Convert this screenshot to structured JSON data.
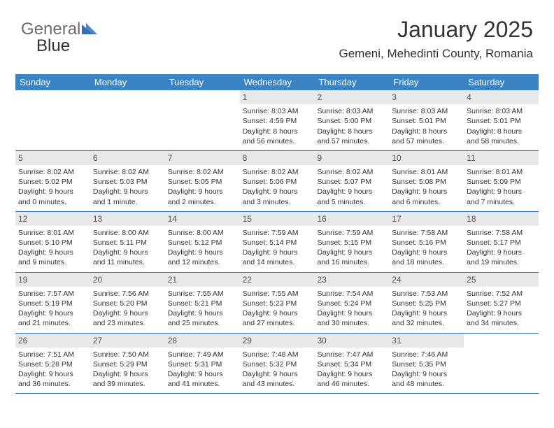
{
  "logo": {
    "text1": "General",
    "text2": "Blue"
  },
  "title": "January 2025",
  "location": "Gemeni, Mehedinti County, Romania",
  "colors": {
    "header_bg": "#3b84c4",
    "header_fg": "#ffffff",
    "daynum_bg": "#e8e8e8",
    "border": "#2f71b8",
    "logo_gray": "#6b6b6b",
    "logo_blue": "#2f71b8"
  },
  "day_headers": [
    "Sunday",
    "Monday",
    "Tuesday",
    "Wednesday",
    "Thursday",
    "Friday",
    "Saturday"
  ],
  "weeks": [
    [
      {
        "n": "",
        "sr": "",
        "ss": "",
        "dl": ""
      },
      {
        "n": "",
        "sr": "",
        "ss": "",
        "dl": ""
      },
      {
        "n": "",
        "sr": "",
        "ss": "",
        "dl": ""
      },
      {
        "n": "1",
        "sr": "Sunrise: 8:03 AM",
        "ss": "Sunset: 4:59 PM",
        "dl": "Daylight: 8 hours and 56 minutes."
      },
      {
        "n": "2",
        "sr": "Sunrise: 8:03 AM",
        "ss": "Sunset: 5:00 PM",
        "dl": "Daylight: 8 hours and 57 minutes."
      },
      {
        "n": "3",
        "sr": "Sunrise: 8:03 AM",
        "ss": "Sunset: 5:01 PM",
        "dl": "Daylight: 8 hours and 57 minutes."
      },
      {
        "n": "4",
        "sr": "Sunrise: 8:03 AM",
        "ss": "Sunset: 5:01 PM",
        "dl": "Daylight: 8 hours and 58 minutes."
      }
    ],
    [
      {
        "n": "5",
        "sr": "Sunrise: 8:02 AM",
        "ss": "Sunset: 5:02 PM",
        "dl": "Daylight: 9 hours and 0 minutes."
      },
      {
        "n": "6",
        "sr": "Sunrise: 8:02 AM",
        "ss": "Sunset: 5:03 PM",
        "dl": "Daylight: 9 hours and 1 minute."
      },
      {
        "n": "7",
        "sr": "Sunrise: 8:02 AM",
        "ss": "Sunset: 5:05 PM",
        "dl": "Daylight: 9 hours and 2 minutes."
      },
      {
        "n": "8",
        "sr": "Sunrise: 8:02 AM",
        "ss": "Sunset: 5:06 PM",
        "dl": "Daylight: 9 hours and 3 minutes."
      },
      {
        "n": "9",
        "sr": "Sunrise: 8:02 AM",
        "ss": "Sunset: 5:07 PM",
        "dl": "Daylight: 9 hours and 5 minutes."
      },
      {
        "n": "10",
        "sr": "Sunrise: 8:01 AM",
        "ss": "Sunset: 5:08 PM",
        "dl": "Daylight: 9 hours and 6 minutes."
      },
      {
        "n": "11",
        "sr": "Sunrise: 8:01 AM",
        "ss": "Sunset: 5:09 PM",
        "dl": "Daylight: 9 hours and 7 minutes."
      }
    ],
    [
      {
        "n": "12",
        "sr": "Sunrise: 8:01 AM",
        "ss": "Sunset: 5:10 PM",
        "dl": "Daylight: 9 hours and 9 minutes."
      },
      {
        "n": "13",
        "sr": "Sunrise: 8:00 AM",
        "ss": "Sunset: 5:11 PM",
        "dl": "Daylight: 9 hours and 11 minutes."
      },
      {
        "n": "14",
        "sr": "Sunrise: 8:00 AM",
        "ss": "Sunset: 5:12 PM",
        "dl": "Daylight: 9 hours and 12 minutes."
      },
      {
        "n": "15",
        "sr": "Sunrise: 7:59 AM",
        "ss": "Sunset: 5:14 PM",
        "dl": "Daylight: 9 hours and 14 minutes."
      },
      {
        "n": "16",
        "sr": "Sunrise: 7:59 AM",
        "ss": "Sunset: 5:15 PM",
        "dl": "Daylight: 9 hours and 16 minutes."
      },
      {
        "n": "17",
        "sr": "Sunrise: 7:58 AM",
        "ss": "Sunset: 5:16 PM",
        "dl": "Daylight: 9 hours and 18 minutes."
      },
      {
        "n": "18",
        "sr": "Sunrise: 7:58 AM",
        "ss": "Sunset: 5:17 PM",
        "dl": "Daylight: 9 hours and 19 minutes."
      }
    ],
    [
      {
        "n": "19",
        "sr": "Sunrise: 7:57 AM",
        "ss": "Sunset: 5:19 PM",
        "dl": "Daylight: 9 hours and 21 minutes."
      },
      {
        "n": "20",
        "sr": "Sunrise: 7:56 AM",
        "ss": "Sunset: 5:20 PM",
        "dl": "Daylight: 9 hours and 23 minutes."
      },
      {
        "n": "21",
        "sr": "Sunrise: 7:55 AM",
        "ss": "Sunset: 5:21 PM",
        "dl": "Daylight: 9 hours and 25 minutes."
      },
      {
        "n": "22",
        "sr": "Sunrise: 7:55 AM",
        "ss": "Sunset: 5:23 PM",
        "dl": "Daylight: 9 hours and 27 minutes."
      },
      {
        "n": "23",
        "sr": "Sunrise: 7:54 AM",
        "ss": "Sunset: 5:24 PM",
        "dl": "Daylight: 9 hours and 30 minutes."
      },
      {
        "n": "24",
        "sr": "Sunrise: 7:53 AM",
        "ss": "Sunset: 5:25 PM",
        "dl": "Daylight: 9 hours and 32 minutes."
      },
      {
        "n": "25",
        "sr": "Sunrise: 7:52 AM",
        "ss": "Sunset: 5:27 PM",
        "dl": "Daylight: 9 hours and 34 minutes."
      }
    ],
    [
      {
        "n": "26",
        "sr": "Sunrise: 7:51 AM",
        "ss": "Sunset: 5:28 PM",
        "dl": "Daylight: 9 hours and 36 minutes."
      },
      {
        "n": "27",
        "sr": "Sunrise: 7:50 AM",
        "ss": "Sunset: 5:29 PM",
        "dl": "Daylight: 9 hours and 39 minutes."
      },
      {
        "n": "28",
        "sr": "Sunrise: 7:49 AM",
        "ss": "Sunset: 5:31 PM",
        "dl": "Daylight: 9 hours and 41 minutes."
      },
      {
        "n": "29",
        "sr": "Sunrise: 7:48 AM",
        "ss": "Sunset: 5:32 PM",
        "dl": "Daylight: 9 hours and 43 minutes."
      },
      {
        "n": "30",
        "sr": "Sunrise: 7:47 AM",
        "ss": "Sunset: 5:34 PM",
        "dl": "Daylight: 9 hours and 46 minutes."
      },
      {
        "n": "31",
        "sr": "Sunrise: 7:46 AM",
        "ss": "Sunset: 5:35 PM",
        "dl": "Daylight: 9 hours and 48 minutes."
      },
      {
        "n": "",
        "sr": "",
        "ss": "",
        "dl": ""
      }
    ]
  ]
}
